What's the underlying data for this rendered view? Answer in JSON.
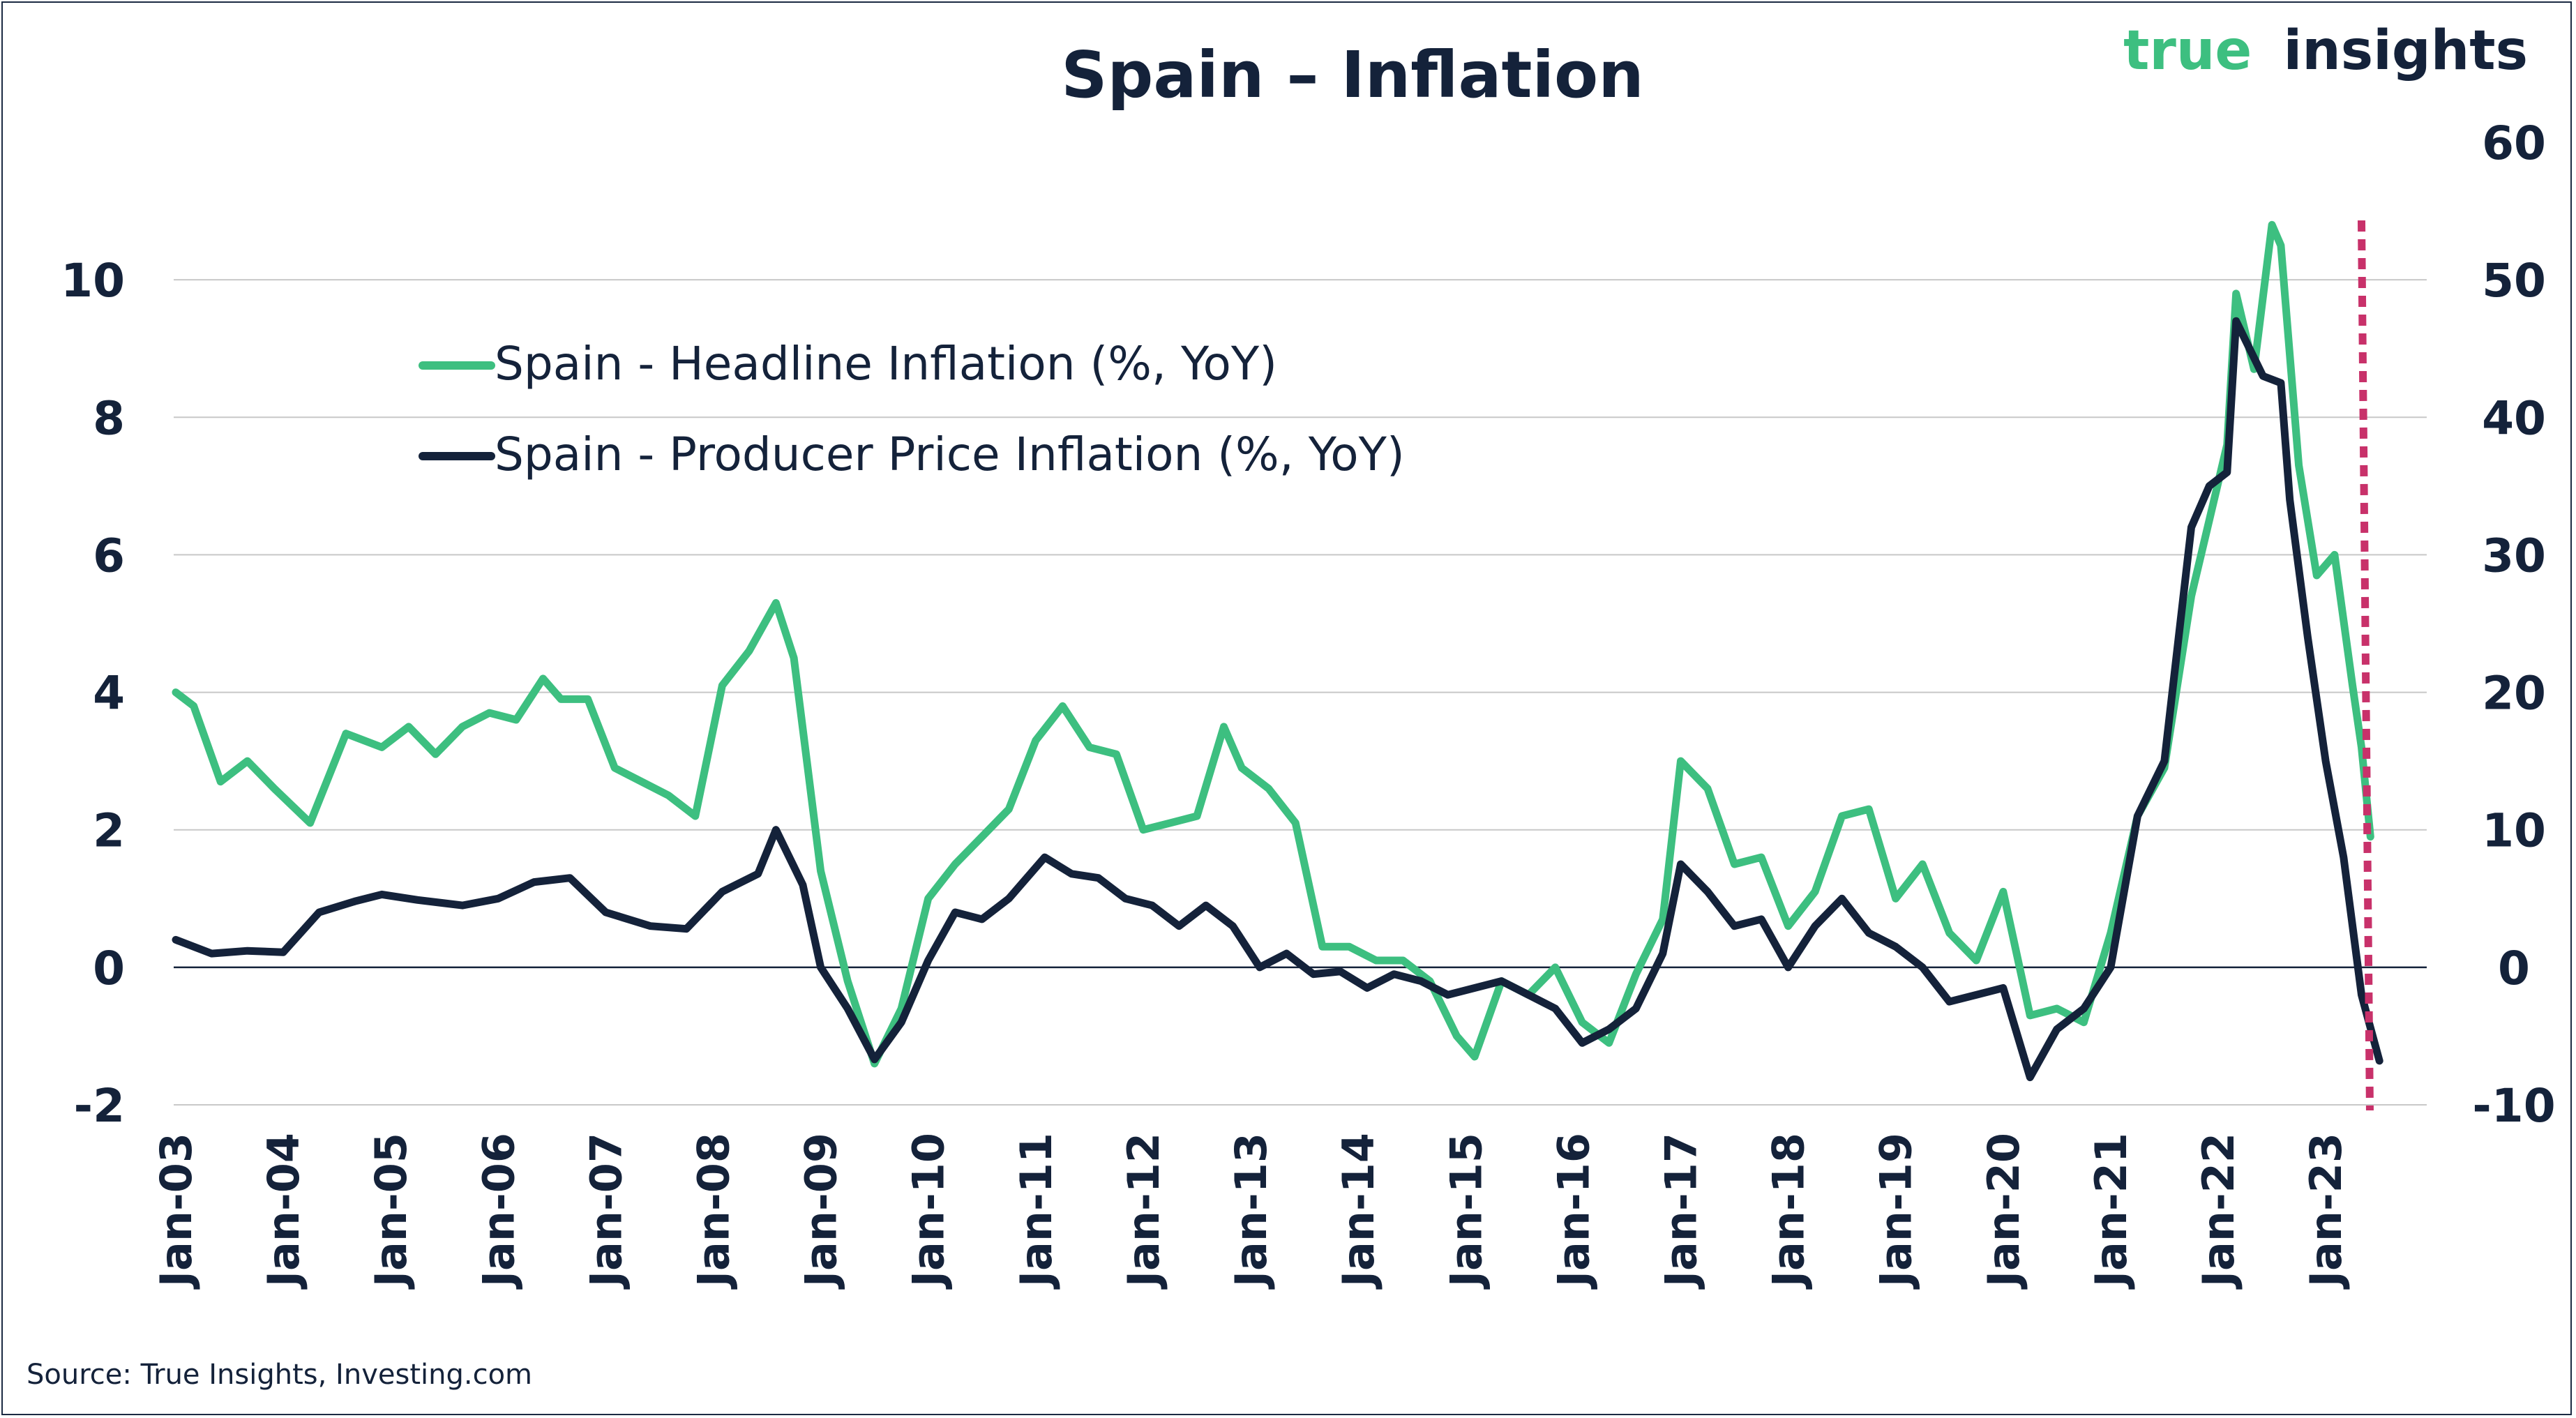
{
  "chart_data": {
    "type": "line",
    "title": "Spain – Inflation",
    "brand": {
      "word1": "true",
      "word2": "insights"
    },
    "source": "Source: True Insights, Investing.com",
    "colors": {
      "headline": "#3dbf80",
      "producer": "#14223a",
      "marker": "#c8316a",
      "grid": "#c8c8c8",
      "text": "#14223a",
      "brand_green": "#3dbf80"
    },
    "y_left": {
      "range": [
        -2,
        12
      ],
      "ticks": [
        "-2",
        "0",
        "2",
        "4",
        "6",
        "8",
        "10"
      ]
    },
    "y_right": {
      "range": [
        -10,
        60
      ],
      "ticks": [
        "-10",
        "0",
        "10",
        "20",
        "30",
        "40",
        "50",
        "60"
      ]
    },
    "x": {
      "start": "2003-01",
      "end": "2023-08",
      "ticks": [
        "Jan-03",
        "Jan-04",
        "Jan-05",
        "Jan-06",
        "Jan-07",
        "Jan-08",
        "Jan-09",
        "Jan-10",
        "Jan-11",
        "Jan-12",
        "Jan-13",
        "Jan-14",
        "Jan-15",
        "Jan-16",
        "Jan-17",
        "Jan-18",
        "Jan-19",
        "Jan-20",
        "Jan-21",
        "Jan-22",
        "Jan-23"
      ]
    },
    "grid": "horizontal",
    "legend_position": "top-left",
    "vertical_marker": "2023-05",
    "series": [
      {
        "name": "Spain - Headline Inflation (%, YoY)",
        "axis": "left",
        "points": [
          [
            "2003-01",
            4.0
          ],
          [
            "2003-03",
            3.8
          ],
          [
            "2003-06",
            2.7
          ],
          [
            "2003-09",
            3.0
          ],
          [
            "2003-12",
            2.6
          ],
          [
            "2004-04",
            2.1
          ],
          [
            "2004-08",
            3.4
          ],
          [
            "2004-12",
            3.2
          ],
          [
            "2005-03",
            3.5
          ],
          [
            "2005-06",
            3.1
          ],
          [
            "2005-09",
            3.5
          ],
          [
            "2005-12",
            3.7
          ],
          [
            "2006-03",
            3.6
          ],
          [
            "2006-06",
            4.2
          ],
          [
            "2006-08",
            3.9
          ],
          [
            "2006-11",
            3.9
          ],
          [
            "2007-02",
            2.9
          ],
          [
            "2007-05",
            2.7
          ],
          [
            "2007-08",
            2.5
          ],
          [
            "2007-11",
            2.2
          ],
          [
            "2008-02",
            4.1
          ],
          [
            "2008-05",
            4.6
          ],
          [
            "2008-08",
            5.3
          ],
          [
            "2008-10",
            4.5
          ],
          [
            "2009-01",
            1.4
          ],
          [
            "2009-04",
            -0.2
          ],
          [
            "2009-07",
            -1.4
          ],
          [
            "2009-10",
            -0.6
          ],
          [
            "2010-01",
            1.0
          ],
          [
            "2010-04",
            1.5
          ],
          [
            "2010-07",
            1.9
          ],
          [
            "2010-10",
            2.3
          ],
          [
            "2011-01",
            3.3
          ],
          [
            "2011-04",
            3.8
          ],
          [
            "2011-07",
            3.2
          ],
          [
            "2011-10",
            3.1
          ],
          [
            "2012-01",
            2.0
          ],
          [
            "2012-04",
            2.1
          ],
          [
            "2012-07",
            2.2
          ],
          [
            "2012-10",
            3.5
          ],
          [
            "2012-12",
            2.9
          ],
          [
            "2013-03",
            2.6
          ],
          [
            "2013-06",
            2.1
          ],
          [
            "2013-09",
            0.3
          ],
          [
            "2013-12",
            0.3
          ],
          [
            "2014-03",
            0.1
          ],
          [
            "2014-06",
            0.1
          ],
          [
            "2014-09",
            -0.2
          ],
          [
            "2014-12",
            -1.0
          ],
          [
            "2015-02",
            -1.3
          ],
          [
            "2015-05",
            -0.2
          ],
          [
            "2015-08",
            -0.4
          ],
          [
            "2015-11",
            0.0
          ],
          [
            "2016-02",
            -0.8
          ],
          [
            "2016-05",
            -1.1
          ],
          [
            "2016-08",
            -0.1
          ],
          [
            "2016-11",
            0.7
          ],
          [
            "2017-01",
            3.0
          ],
          [
            "2017-04",
            2.6
          ],
          [
            "2017-07",
            1.5
          ],
          [
            "2017-10",
            1.6
          ],
          [
            "2018-01",
            0.6
          ],
          [
            "2018-04",
            1.1
          ],
          [
            "2018-07",
            2.2
          ],
          [
            "2018-10",
            2.3
          ],
          [
            "2019-01",
            1.0
          ],
          [
            "2019-04",
            1.5
          ],
          [
            "2019-07",
            0.5
          ],
          [
            "2019-10",
            0.1
          ],
          [
            "2020-01",
            1.1
          ],
          [
            "2020-04",
            -0.7
          ],
          [
            "2020-07",
            -0.6
          ],
          [
            "2020-10",
            -0.8
          ],
          [
            "2021-01",
            0.5
          ],
          [
            "2021-04",
            2.2
          ],
          [
            "2021-07",
            2.9
          ],
          [
            "2021-10",
            5.4
          ],
          [
            "2021-12",
            6.5
          ],
          [
            "2022-02",
            7.6
          ],
          [
            "2022-03",
            9.8
          ],
          [
            "2022-05",
            8.7
          ],
          [
            "2022-07",
            10.8
          ],
          [
            "2022-08",
            10.5
          ],
          [
            "2022-10",
            7.3
          ],
          [
            "2022-12",
            5.7
          ],
          [
            "2023-02",
            6.0
          ],
          [
            "2023-04",
            4.1
          ],
          [
            "2023-05",
            3.2
          ],
          [
            "2023-06",
            1.9
          ]
        ]
      },
      {
        "name": "Spain - Producer Price Inflation (%, YoY)",
        "axis": "right",
        "points": [
          [
            "2003-01",
            2.0
          ],
          [
            "2003-05",
            1.0
          ],
          [
            "2003-09",
            1.2
          ],
          [
            "2004-01",
            1.1
          ],
          [
            "2004-05",
            4.0
          ],
          [
            "2004-09",
            4.8
          ],
          [
            "2004-12",
            5.3
          ],
          [
            "2005-04",
            4.9
          ],
          [
            "2005-09",
            4.5
          ],
          [
            "2006-01",
            5.0
          ],
          [
            "2006-05",
            6.2
          ],
          [
            "2006-09",
            6.5
          ],
          [
            "2007-01",
            4.0
          ],
          [
            "2007-06",
            3.0
          ],
          [
            "2007-10",
            2.8
          ],
          [
            "2008-02",
            5.5
          ],
          [
            "2008-06",
            6.8
          ],
          [
            "2008-08",
            10.0
          ],
          [
            "2008-11",
            6.0
          ],
          [
            "2009-01",
            0.0
          ],
          [
            "2009-04",
            -3.0
          ],
          [
            "2009-07",
            -6.7
          ],
          [
            "2009-10",
            -4.0
          ],
          [
            "2010-01",
            0.5
          ],
          [
            "2010-04",
            4.0
          ],
          [
            "2010-07",
            3.5
          ],
          [
            "2010-10",
            5.0
          ],
          [
            "2011-02",
            8.0
          ],
          [
            "2011-05",
            6.8
          ],
          [
            "2011-08",
            6.5
          ],
          [
            "2011-11",
            5.0
          ],
          [
            "2012-02",
            4.5
          ],
          [
            "2012-05",
            3.0
          ],
          [
            "2012-08",
            4.5
          ],
          [
            "2012-11",
            3.0
          ],
          [
            "2013-02",
            0.0
          ],
          [
            "2013-05",
            1.0
          ],
          [
            "2013-08",
            -0.5
          ],
          [
            "2013-11",
            -0.3
          ],
          [
            "2014-02",
            -1.5
          ],
          [
            "2014-05",
            -0.5
          ],
          [
            "2014-08",
            -1.0
          ],
          [
            "2014-11",
            -2.0
          ],
          [
            "2015-02",
            -1.5
          ],
          [
            "2015-05",
            -1.0
          ],
          [
            "2015-08",
            -2.0
          ],
          [
            "2015-11",
            -3.0
          ],
          [
            "2016-02",
            -5.5
          ],
          [
            "2016-05",
            -4.5
          ],
          [
            "2016-08",
            -3.0
          ],
          [
            "2016-11",
            1.0
          ],
          [
            "2017-01",
            7.5
          ],
          [
            "2017-04",
            5.5
          ],
          [
            "2017-07",
            3.0
          ],
          [
            "2017-10",
            3.5
          ],
          [
            "2018-01",
            0.0
          ],
          [
            "2018-04",
            3.0
          ],
          [
            "2018-07",
            5.0
          ],
          [
            "2018-10",
            2.5
          ],
          [
            "2019-01",
            1.5
          ],
          [
            "2019-04",
            0.0
          ],
          [
            "2019-07",
            -2.5
          ],
          [
            "2019-10",
            -2.0
          ],
          [
            "2020-01",
            -1.5
          ],
          [
            "2020-04",
            -8.0
          ],
          [
            "2020-07",
            -4.5
          ],
          [
            "2020-10",
            -3.0
          ],
          [
            "2021-01",
            0.0
          ],
          [
            "2021-04",
            11.0
          ],
          [
            "2021-07",
            15.0
          ],
          [
            "2021-10",
            32.0
          ],
          [
            "2021-12",
            35.0
          ],
          [
            "2022-02",
            36.0
          ],
          [
            "2022-03",
            47.0
          ],
          [
            "2022-06",
            43.0
          ],
          [
            "2022-08",
            42.5
          ],
          [
            "2022-09",
            34.0
          ],
          [
            "2022-11",
            24.0
          ],
          [
            "2023-01",
            15.0
          ],
          [
            "2023-03",
            8.0
          ],
          [
            "2023-05",
            -2.0
          ],
          [
            "2023-07",
            -6.8
          ]
        ]
      }
    ]
  }
}
